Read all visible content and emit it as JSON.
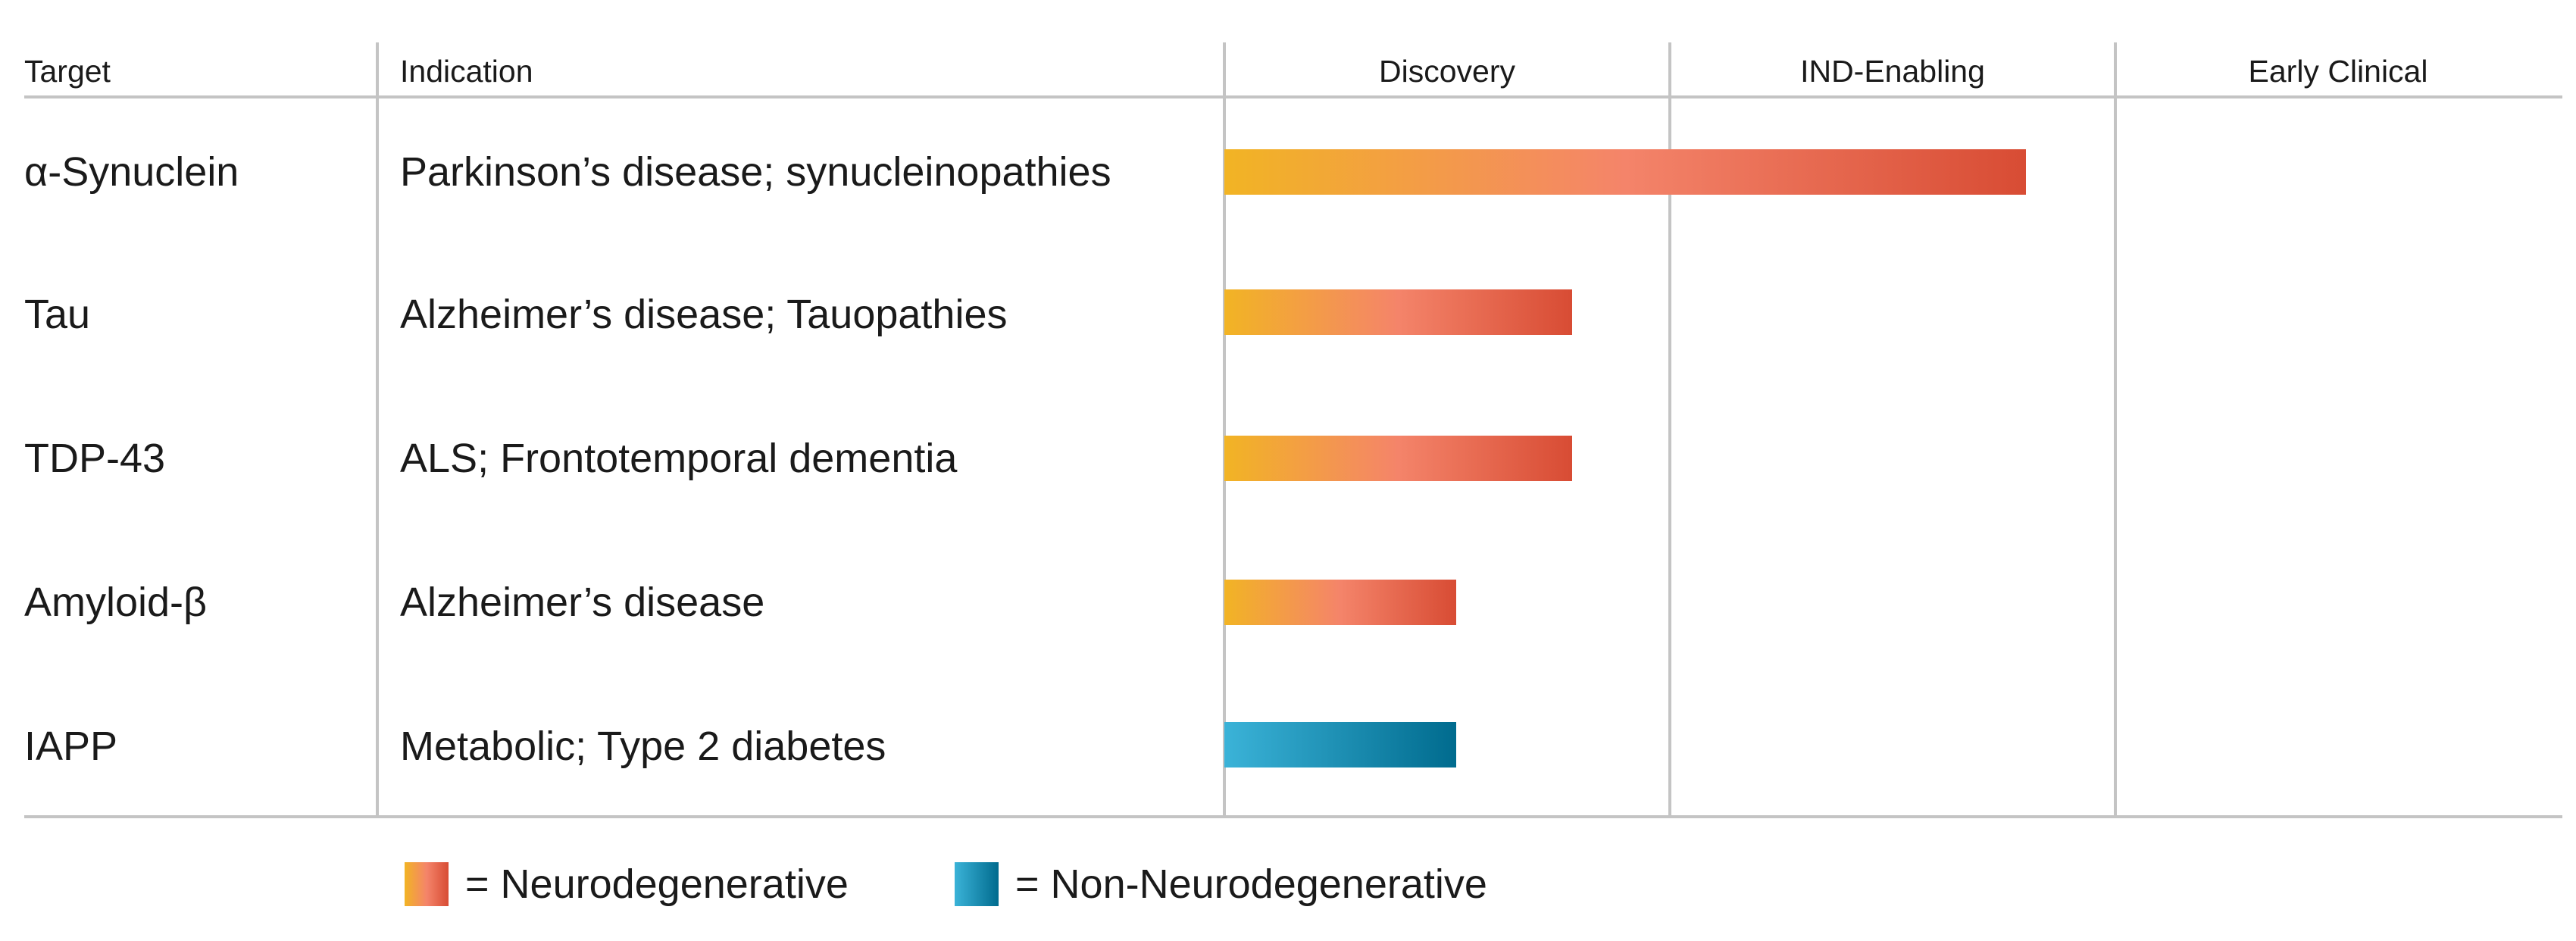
{
  "chart_data": {
    "type": "bar",
    "orientation": "horizontal",
    "columns": {
      "target": "Target",
      "indication": "Indication",
      "stages": [
        "Discovery",
        "IND-Enabling",
        "Early Clinical"
      ]
    },
    "xlim": [
      0,
      3
    ],
    "rows": [
      {
        "target": "α-Synuclein",
        "indication": "Parkinson’s disease; synucleinopathies",
        "progress": 1.8,
        "category": "neuro"
      },
      {
        "target": "Tau",
        "indication": "Alzheimer’s disease; Tauopathies",
        "progress": 0.78,
        "category": "neuro"
      },
      {
        "target": "TDP-43",
        "indication": "ALS; Frontotemporal dementia",
        "progress": 0.78,
        "category": "neuro"
      },
      {
        "target": "Amyloid-β",
        "indication": "Alzheimer’s disease",
        "progress": 0.52,
        "category": "neuro"
      },
      {
        "target": "IAPP",
        "indication": "Metabolic; Type 2 diabetes",
        "progress": 0.52,
        "category": "non-neuro"
      }
    ],
    "legend": [
      {
        "key": "neuro",
        "label": "= Neurodegenerative",
        "colors": [
          "#f2b424",
          "#f4846a",
          "#d84c34"
        ]
      },
      {
        "key": "non-neuro",
        "label": "= Non-Neurodegenerative",
        "colors": [
          "#3bb3d8",
          "#006b8e"
        ]
      }
    ],
    "grid": true
  }
}
